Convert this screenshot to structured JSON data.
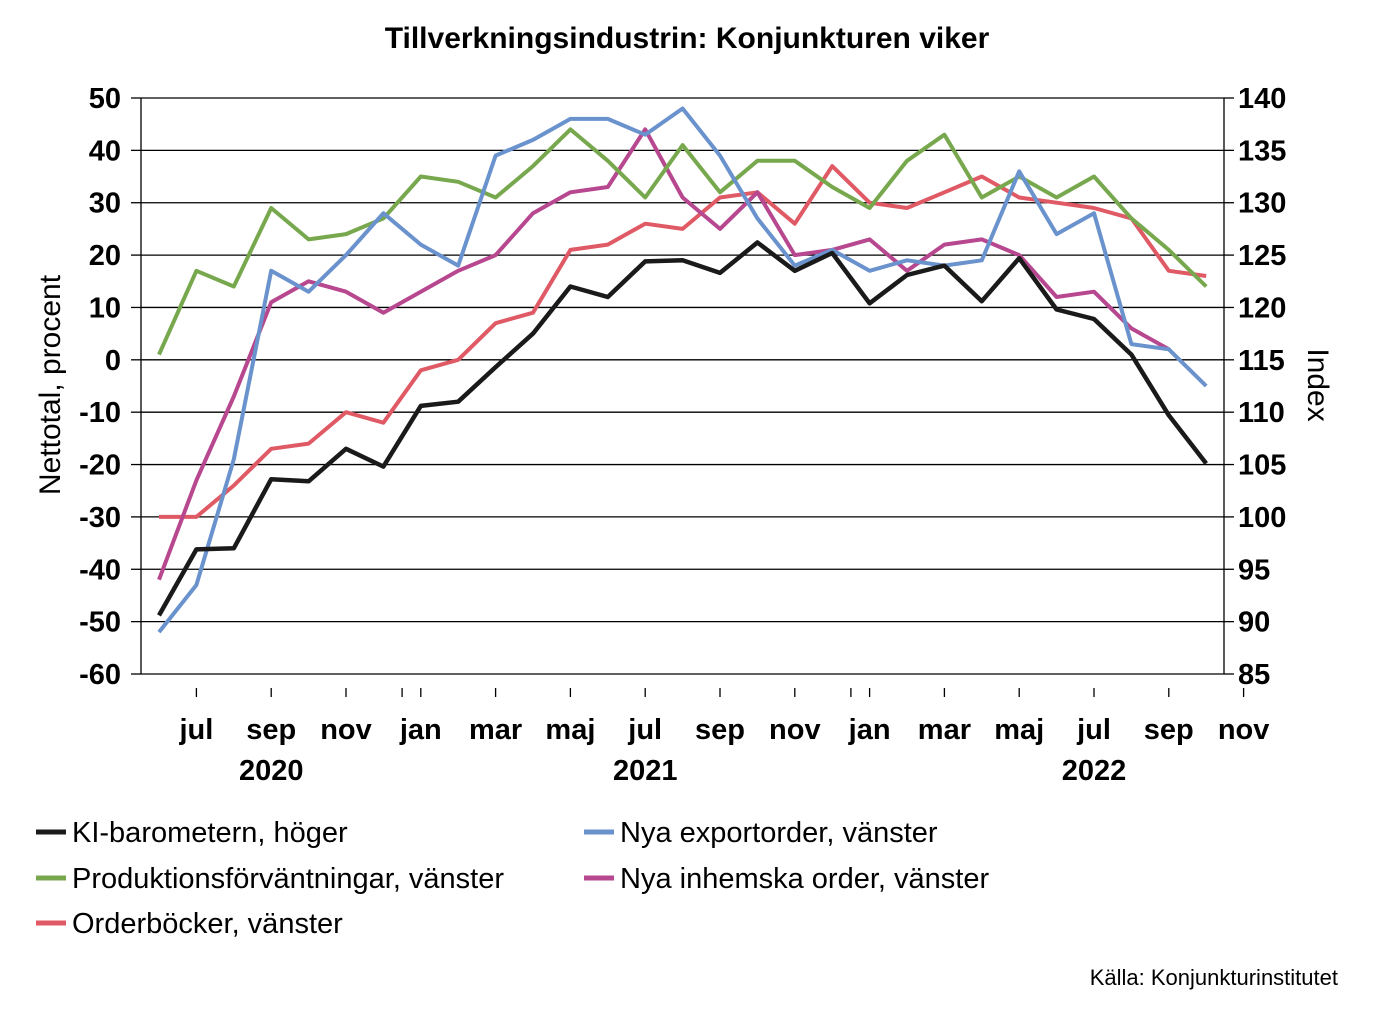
{
  "chart_data": {
    "type": "line",
    "title": "Tillverkningsindustrin: Konjunkturen viker",
    "ylabel_left": "Nettotal, procent",
    "ylabel_right": "Index",
    "ylim_left": [
      -60,
      50
    ],
    "ylim_right": [
      85,
      140
    ],
    "yticks_left": [
      "50",
      "40",
      "30",
      "20",
      "10",
      "0",
      "-10",
      "-20",
      "-30",
      "-40",
      "-50",
      "-60"
    ],
    "yticks_right": [
      "140",
      "135",
      "130",
      "125",
      "120",
      "115",
      "110",
      "105",
      "100",
      "95",
      "90",
      "85"
    ],
    "grid": true,
    "x": [
      "2020-06",
      "2020-07",
      "2020-08",
      "2020-09",
      "2020-10",
      "2020-11",
      "2020-12",
      "2021-01",
      "2021-02",
      "2021-03",
      "2021-04",
      "2021-05",
      "2021-06",
      "2021-07",
      "2021-08",
      "2021-09",
      "2021-10",
      "2021-11",
      "2021-12",
      "2022-01",
      "2022-02",
      "2022-03",
      "2022-04",
      "2022-05",
      "2022-06",
      "2022-07",
      "2022-08",
      "2022-09",
      "2022-10",
      "2022-11"
    ],
    "xtick_labels": [
      {
        "x": "2020-07",
        "label": "jul"
      },
      {
        "x": "2020-09",
        "label": "sep"
      },
      {
        "x": "2020-11",
        "label": "nov"
      },
      {
        "x": "2021-01",
        "label": "jan"
      },
      {
        "x": "2021-03",
        "label": "mar"
      },
      {
        "x": "2021-05",
        "label": "maj"
      },
      {
        "x": "2021-07",
        "label": "jul"
      },
      {
        "x": "2021-09",
        "label": "sep"
      },
      {
        "x": "2021-11",
        "label": "nov"
      },
      {
        "x": "2022-01",
        "label": "jan"
      },
      {
        "x": "2022-03",
        "label": "mar"
      },
      {
        "x": "2022-05",
        "label": "maj"
      },
      {
        "x": "2022-07",
        "label": "jul"
      },
      {
        "x": "2022-09",
        "label": "sep"
      },
      {
        "x": "2022-11",
        "label": "nov"
      }
    ],
    "year_labels": [
      {
        "x": "2020-09",
        "label": "2020"
      },
      {
        "x": "2021-07",
        "label": "2021"
      },
      {
        "x": "2022-07",
        "label": "2022"
      }
    ],
    "year_boundaries": [
      "2020-12",
      "2021-12"
    ],
    "series": [
      {
        "name": "KI-barometern, höger",
        "axis": "right",
        "color": "#1a1a1a",
        "values": [
          90.6,
          96.9,
          97.0,
          103.6,
          103.4,
          106.5,
          104.8,
          110.6,
          111.0,
          114.3,
          117.5,
          122.0,
          121.0,
          124.4,
          124.5,
          123.3,
          126.2,
          123.5,
          125.2,
          120.4,
          123.1,
          124.0,
          120.6,
          124.7,
          119.8,
          118.9,
          115.5,
          109.7,
          105.1,
          null
        ],
        "values_comment": ""
      },
      {
        "name": "Nya exportorder, vänster",
        "axis": "left",
        "color": "#6a92cd",
        "values": [
          -52,
          -43,
          -19,
          17,
          13,
          20,
          28,
          22,
          18,
          39,
          42,
          46,
          46,
          43,
          48,
          39,
          27,
          18,
          21,
          17,
          19,
          18,
          19,
          36,
          24,
          28,
          3,
          2,
          -5,
          null
        ]
      },
      {
        "name": "Produktionsförväntningar, vänster",
        "axis": "left",
        "color": "#78a84e",
        "values": [
          1,
          17,
          14,
          29,
          23,
          24,
          27,
          35,
          34,
          31,
          37,
          44,
          38,
          31,
          41,
          32,
          38,
          38,
          33,
          29,
          38,
          43,
          31,
          35,
          31,
          35,
          27,
          21,
          14,
          null
        ]
      },
      {
        "name": "Nya inhemska order, vänster",
        "axis": "left",
        "color": "#b7478f",
        "values": [
          -42,
          -23,
          -7,
          11,
          15,
          13,
          9,
          13,
          17,
          20,
          28,
          32,
          33,
          44,
          31,
          25,
          32,
          20,
          21,
          23,
          17,
          22,
          23,
          20,
          12,
          13,
          6,
          2,
          null,
          null
        ]
      },
      {
        "name": "Orderböcker, vänster",
        "axis": "left",
        "color": "#e05a66",
        "values": [
          -30,
          -30,
          -24,
          -17,
          -16,
          -10,
          -12,
          -2,
          0,
          7,
          9,
          21,
          22,
          26,
          25,
          31,
          32,
          26,
          37,
          30,
          29,
          32,
          35,
          31,
          30,
          29,
          27,
          17,
          16,
          null
        ]
      }
    ],
    "legend_placement": "bottom",
    "source": "Källa: Konjunkturinstitutet"
  }
}
